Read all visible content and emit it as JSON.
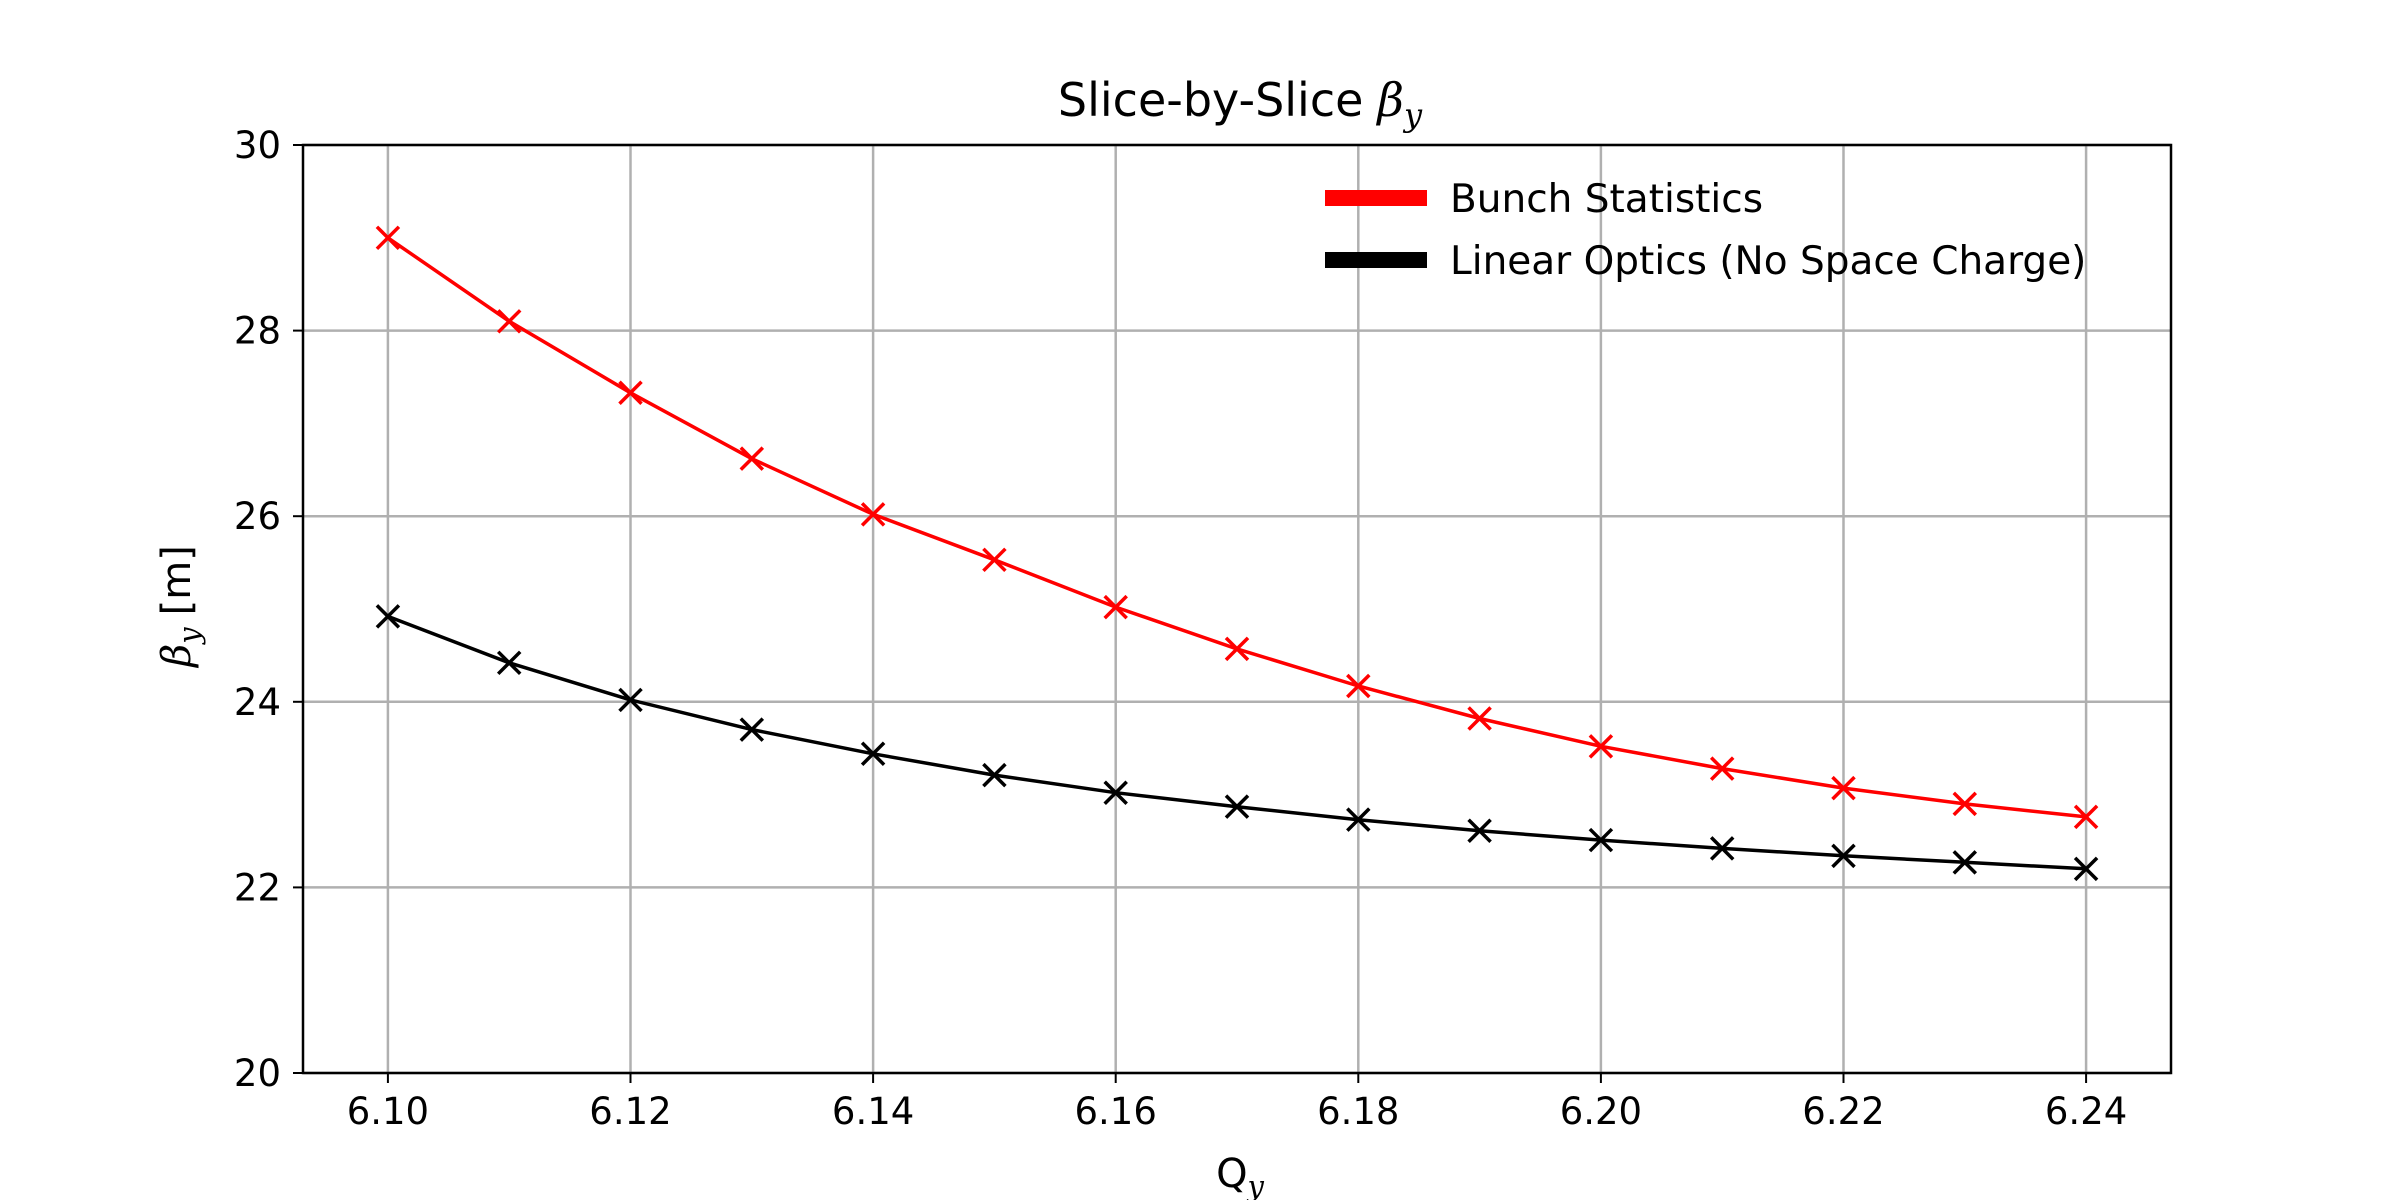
{
  "chart_data": {
    "type": "line",
    "title": "Slice-by-Slice",
    "title_math": "β",
    "title_math_sub": "y",
    "xlabel": "Q",
    "xlabel_sub": "y",
    "ylabel_math": "β",
    "ylabel_sub": "y",
    "ylabel_unit": "[m]",
    "x": [
      6.1,
      6.11,
      6.12,
      6.13,
      6.14,
      6.15,
      6.16,
      6.17,
      6.18,
      6.19,
      6.2,
      6.21,
      6.22,
      6.23,
      6.24
    ],
    "xlim": [
      6.093,
      6.247
    ],
    "ylim": [
      20,
      30
    ],
    "xticks": [
      6.1,
      6.12,
      6.14,
      6.16,
      6.18,
      6.2,
      6.22,
      6.24
    ],
    "xtick_labels": [
      "6.10",
      "6.12",
      "6.14",
      "6.16",
      "6.18",
      "6.20",
      "6.22",
      "6.24"
    ],
    "yticks": [
      20,
      22,
      24,
      26,
      28,
      30
    ],
    "ytick_labels": [
      "20",
      "22",
      "24",
      "26",
      "28",
      "30"
    ],
    "grid": true,
    "legend_position": "top-right",
    "marker": "x",
    "series": [
      {
        "name": "Bunch Statistics",
        "color": "#ff0000",
        "values": [
          29.0,
          28.1,
          27.33,
          26.62,
          26.02,
          25.53,
          25.02,
          24.57,
          24.17,
          23.82,
          23.52,
          23.28,
          23.07,
          22.9,
          22.76
        ]
      },
      {
        "name": "Linear Optics (No Space Charge)",
        "color": "#000000",
        "values": [
          24.92,
          24.42,
          24.02,
          23.7,
          23.44,
          23.21,
          23.02,
          22.87,
          22.73,
          22.61,
          22.51,
          22.42,
          22.34,
          22.27,
          22.2
        ]
      }
    ]
  }
}
